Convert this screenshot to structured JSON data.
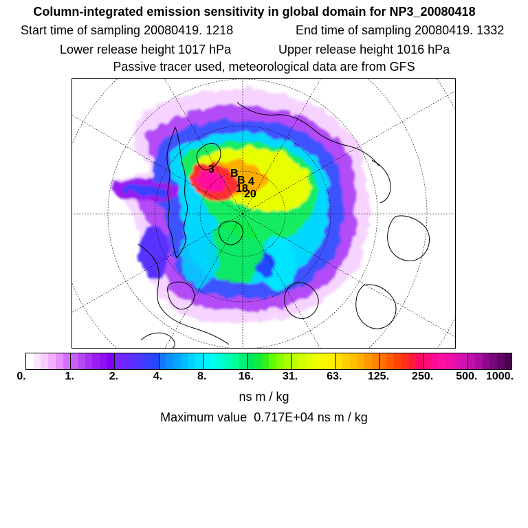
{
  "header": {
    "title": "Column-integrated emission sensitivity in global domain for NP3_20080418",
    "start_label": "Start time of sampling 20080419.  1218",
    "end_label": "End time of sampling 20080419.  1332",
    "lower_label": "Lower release height 1017 hPa",
    "upper_label": "Upper release height 1016 hPa",
    "tracer_label": "Passive tracer used, meteorological data are from GFS"
  },
  "map": {
    "projection": "polar stereographic (north pole)",
    "markers": [
      "3",
      "B",
      "B",
      "4",
      "18",
      "20"
    ]
  },
  "colorbar": {
    "tick_labels": [
      "0.",
      "1.",
      "2.",
      "4.",
      "8.",
      "16.",
      "31.",
      "63.",
      "125.",
      "250.",
      "500.",
      "1000."
    ],
    "colors": [
      "#ffffff",
      "#fbe6ff",
      "#f6ccff",
      "#f0b0ff",
      "#e890ff",
      "#d470ff",
      "#c860f8",
      "#b848f4",
      "#a830f0",
      "#9a1cf0",
      "#8e10f0",
      "#8400f8",
      "#7a24ff",
      "#6a28ff",
      "#5a30ff",
      "#4a38ff",
      "#3a40ff",
      "#2048ff",
      "#1478ff",
      "#0a90ff",
      "#00a6ff",
      "#00bcff",
      "#00d2ff",
      "#00e4ff",
      "#00f4ff",
      "#00ffee",
      "#00ffd2",
      "#00ffb4",
      "#00ff96",
      "#00f07a",
      "#00e860",
      "#10ec40",
      "#30f020",
      "#60ff00",
      "#88ff00",
      "#a8ff00",
      "#c0ff00",
      "#d0ff00",
      "#e0ff00",
      "#f0ff00",
      "#f8f600",
      "#fff000",
      "#ffe000",
      "#ffd000",
      "#ffc000",
      "#ffae00",
      "#ff9800",
      "#ff8400",
      "#ff7000",
      "#ff5a00",
      "#ff4400",
      "#ff2e20",
      "#ff1a40",
      "#ff0a60",
      "#ff0a7c",
      "#ff0a90",
      "#ff10a0",
      "#f010a8",
      "#e010b0",
      "#d010b0",
      "#c010a8",
      "#a80ca0",
      "#900890",
      "#78067c",
      "#600468",
      "#4a0250"
    ],
    "units": "ns m / kg"
  },
  "footer": {
    "max_label": "Maximum value  0.717E+04 ns m / kg"
  }
}
